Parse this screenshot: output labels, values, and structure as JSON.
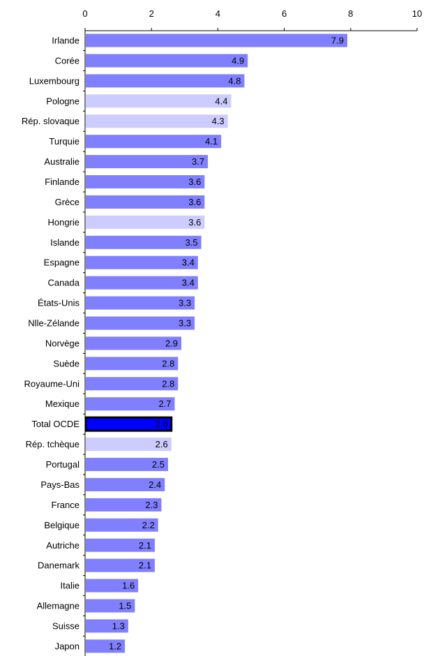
{
  "chart_data": {
    "type": "bar",
    "orientation": "horizontal",
    "xlim": [
      0,
      10
    ],
    "xticks": [
      "0",
      "2",
      "4",
      "6",
      "8",
      "10"
    ],
    "axis_position": "top",
    "grid": false,
    "legend": "none",
    "colors": {
      "default": "#8080FF",
      "light": "#CCCCFF",
      "highlight": "#0000FF",
      "highlight_border": "#000000"
    },
    "categories": [
      "Irlande",
      "Corée",
      "Luxembourg",
      "Pologne",
      "Rép. slovaque",
      "Turquie",
      "Australie",
      "Finlande",
      "Grèce",
      "Hongrie",
      "Islande",
      "Espagne",
      "Canada",
      "États-Unis",
      "Nlle-Zélande",
      "Norvège",
      "Suède",
      "Royaume-Uni",
      "Mexique",
      "Total OCDE",
      "Rép. tchèque",
      "Portugal",
      "Pays-Bas",
      "France",
      "Belgique",
      "Autriche",
      "Danemark",
      "Italie",
      "Allemagne",
      "Suisse",
      "Japon"
    ],
    "values": [
      7.9,
      4.9,
      4.8,
      4.4,
      4.3,
      4.1,
      3.7,
      3.6,
      3.6,
      3.6,
      3.5,
      3.4,
      3.4,
      3.3,
      3.3,
      2.9,
      2.8,
      2.8,
      2.7,
      2.6,
      2.6,
      2.5,
      2.4,
      2.3,
      2.2,
      2.1,
      2.1,
      1.6,
      1.5,
      1.3,
      1.2
    ],
    "value_labels": [
      "7.9",
      "4.9",
      "4.8",
      "4.4",
      "4.3",
      "4.1",
      "3.7",
      "3.6",
      "3.6",
      "3.6",
      "3.5",
      "3.4",
      "3.4",
      "3.3",
      "3.3",
      "2.9",
      "2.8",
      "2.8",
      "2.7",
      "2.6",
      "2.6",
      "2.5",
      "2.4",
      "2.3",
      "2.2",
      "2.1",
      "2.1",
      "1.6",
      "1.5",
      "1.3",
      "1.2"
    ],
    "bar_styles": [
      "default",
      "default",
      "default",
      "light",
      "light",
      "default",
      "default",
      "default",
      "default",
      "light",
      "default",
      "default",
      "default",
      "default",
      "default",
      "default",
      "default",
      "default",
      "default",
      "highlight",
      "light",
      "default",
      "default",
      "default",
      "default",
      "default",
      "default",
      "default",
      "default",
      "default",
      "default"
    ]
  }
}
